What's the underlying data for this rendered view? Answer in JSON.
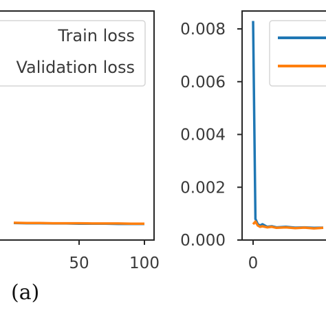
{
  "caption": "(a)",
  "chart_data": [
    {
      "type": "line",
      "title": "",
      "xlabel": "",
      "ylabel": "",
      "xlim": [
        0,
        100
      ],
      "x_ticks": [
        "50",
        "100"
      ],
      "x_tick_values": [
        50,
        100
      ],
      "grid": false,
      "legend": {
        "placement": "top-right",
        "entries": [
          "Train loss",
          "Validation loss"
        ]
      },
      "series": [
        {
          "name": "Train loss",
          "color": "#1f77b4",
          "x": [
            0,
            10,
            20,
            30,
            40,
            50,
            60,
            70,
            80,
            90,
            100
          ],
          "values": [
            0.00045,
            0.00044,
            0.00044,
            0.00043,
            0.00043,
            0.00042,
            0.00042,
            0.00042,
            0.00041,
            0.00041,
            0.00041
          ]
        },
        {
          "name": "Validation loss",
          "color": "#ff7f0e",
          "x": [
            0,
            10,
            20,
            30,
            40,
            50,
            60,
            70,
            80,
            90,
            100
          ],
          "values": [
            0.00046,
            0.00045,
            0.00045,
            0.00044,
            0.00044,
            0.00044,
            0.00043,
            0.00043,
            0.00043,
            0.00042,
            0.00042
          ]
        }
      ]
    },
    {
      "type": "line",
      "title": "",
      "xlabel": "",
      "ylabel": "",
      "ylim": [
        0,
        0.0085
      ],
      "y_ticks": [
        "0.000",
        "0.002",
        "0.004",
        "0.006",
        "0.008"
      ],
      "y_tick_values": [
        0,
        0.002,
        0.004,
        0.006,
        0.008
      ],
      "x_ticks": [
        "0"
      ],
      "x_tick_values": [
        0
      ],
      "grid": false,
      "legend": {
        "placement": "top-right",
        "entries": [
          "",
          ""
        ]
      },
      "series": [
        {
          "name": "",
          "color": "#1f77b4",
          "x": [
            0,
            1,
            2,
            3,
            4,
            6,
            8,
            10,
            14,
            18,
            22,
            26,
            30
          ],
          "values": [
            0.0083,
            0.0008,
            0.0006,
            0.00055,
            0.0006,
            0.0005,
            0.00052,
            0.00048,
            0.0005,
            0.00047,
            0.00048,
            0.00046,
            0.00047
          ]
        },
        {
          "name": "",
          "color": "#ff7f0e",
          "x": [
            0,
            1,
            2,
            3,
            4,
            6,
            8,
            10,
            14,
            18,
            22,
            26,
            30
          ],
          "values": [
            0.0006,
            0.0007,
            0.00055,
            0.0005,
            0.00052,
            0.00048,
            0.0005,
            0.00046,
            0.00048,
            0.00045,
            0.00047,
            0.00044,
            0.00046
          ]
        }
      ]
    }
  ]
}
